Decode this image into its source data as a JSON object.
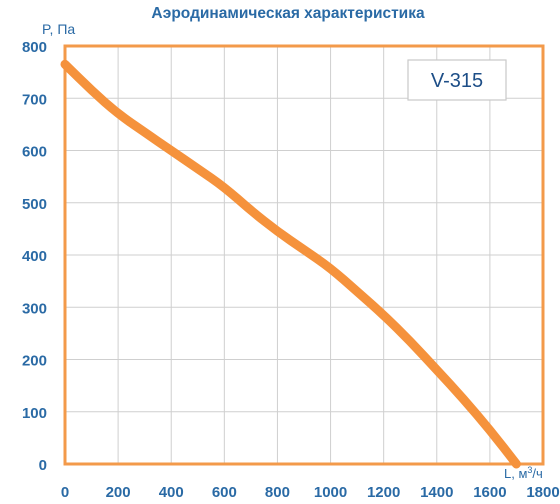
{
  "chart_data": {
    "type": "line",
    "title": "Аэродинамическая характеристика",
    "ylabel": "P, Па",
    "xlabel_base": "L, м",
    "xlabel_sup": "3",
    "xlabel_tail": "/ч",
    "model_label": "V-315",
    "xlim": [
      0,
      1800
    ],
    "ylim": [
      0,
      800
    ],
    "x_ticks": [
      0,
      200,
      400,
      600,
      800,
      1000,
      1200,
      1400,
      1600,
      1800
    ],
    "y_ticks": [
      0,
      100,
      200,
      300,
      400,
      500,
      600,
      700,
      800
    ],
    "grid": true,
    "series": [
      {
        "x": [
          0,
          100,
          200,
          300,
          400,
          500,
          600,
          700,
          800,
          900,
          1000,
          1100,
          1200,
          1300,
          1400,
          1500,
          1600,
          1700,
          1800,
          1840
        ],
        "y": [
          765,
          715,
          670,
          635,
          600,
          565,
          530,
          485,
          445,
          410,
          375,
          330,
          285,
          235,
          180,
          125,
          65,
          0,
          0,
          0
        ]
      }
    ]
  },
  "colors": {
    "frame": "#f39a4a",
    "curve": "#f5923c",
    "grid": "#cfcfcf",
    "tick_text": "#2a6aa5",
    "title_text": "#2a6aa5",
    "label_border": "#c9c9c9",
    "label_text": "#1d4e87"
  }
}
